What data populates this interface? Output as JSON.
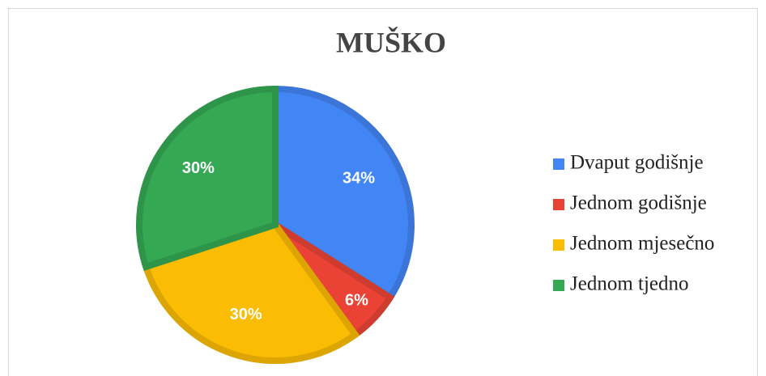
{
  "chart_data": {
    "type": "pie",
    "title": "MUŠKO",
    "categories": [
      "Dvaput godišnje",
      "Jednom godišnje",
      "Jednom mjesečno",
      "Jednom tjedno"
    ],
    "values": [
      34,
      6,
      30,
      30
    ],
    "value_labels": [
      "34%",
      "6%",
      "30%",
      "30%"
    ],
    "colors": [
      "#4285f4",
      "#ea4335",
      "#fbbc04",
      "#34a853"
    ],
    "legend": "right"
  }
}
